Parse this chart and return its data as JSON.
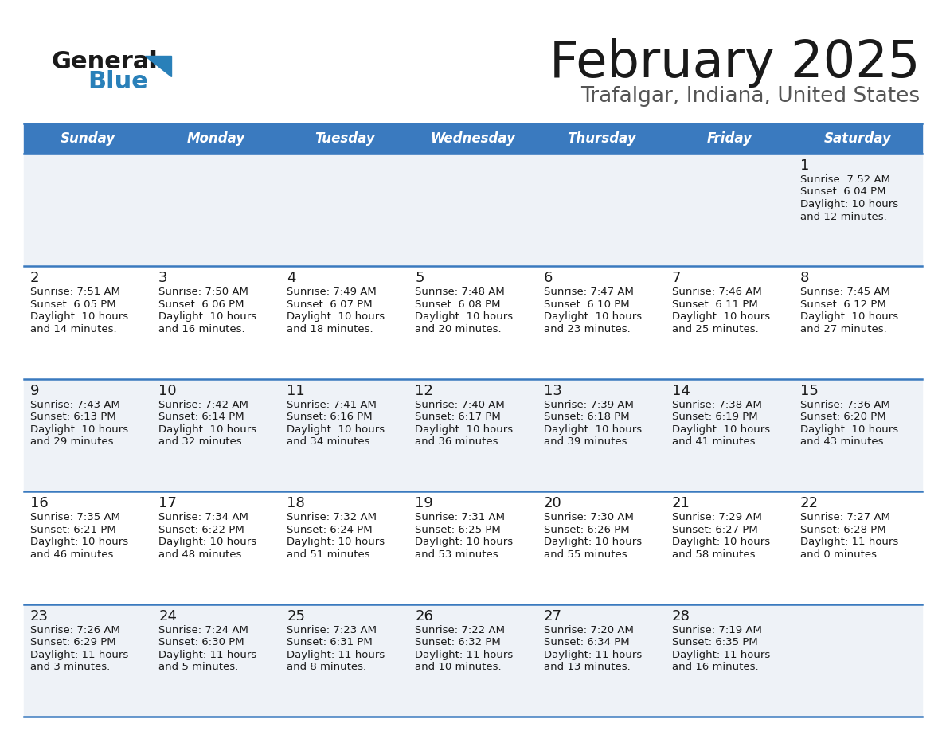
{
  "title": "February 2025",
  "subtitle": "Trafalgar, Indiana, United States",
  "header_color": "#3a7abf",
  "header_text_color": "#ffffff",
  "cell_bg_odd": "#eef2f7",
  "cell_bg_even": "#ffffff",
  "border_color": "#3a7abf",
  "text_color": "#1a1a1a",
  "days_of_week": [
    "Sunday",
    "Monday",
    "Tuesday",
    "Wednesday",
    "Thursday",
    "Friday",
    "Saturday"
  ],
  "calendar_data": [
    [
      {
        "day": null,
        "sunrise": null,
        "sunset": null,
        "daylight_line1": null,
        "daylight_line2": null
      },
      {
        "day": null,
        "sunrise": null,
        "sunset": null,
        "daylight_line1": null,
        "daylight_line2": null
      },
      {
        "day": null,
        "sunrise": null,
        "sunset": null,
        "daylight_line1": null,
        "daylight_line2": null
      },
      {
        "day": null,
        "sunrise": null,
        "sunset": null,
        "daylight_line1": null,
        "daylight_line2": null
      },
      {
        "day": null,
        "sunrise": null,
        "sunset": null,
        "daylight_line1": null,
        "daylight_line2": null
      },
      {
        "day": null,
        "sunrise": null,
        "sunset": null,
        "daylight_line1": null,
        "daylight_line2": null
      },
      {
        "day": "1",
        "sunrise": "Sunrise: 7:52 AM",
        "sunset": "Sunset: 6:04 PM",
        "daylight_line1": "Daylight: 10 hours",
        "daylight_line2": "and 12 minutes."
      }
    ],
    [
      {
        "day": "2",
        "sunrise": "Sunrise: 7:51 AM",
        "sunset": "Sunset: 6:05 PM",
        "daylight_line1": "Daylight: 10 hours",
        "daylight_line2": "and 14 minutes."
      },
      {
        "day": "3",
        "sunrise": "Sunrise: 7:50 AM",
        "sunset": "Sunset: 6:06 PM",
        "daylight_line1": "Daylight: 10 hours",
        "daylight_line2": "and 16 minutes."
      },
      {
        "day": "4",
        "sunrise": "Sunrise: 7:49 AM",
        "sunset": "Sunset: 6:07 PM",
        "daylight_line1": "Daylight: 10 hours",
        "daylight_line2": "and 18 minutes."
      },
      {
        "day": "5",
        "sunrise": "Sunrise: 7:48 AM",
        "sunset": "Sunset: 6:08 PM",
        "daylight_line1": "Daylight: 10 hours",
        "daylight_line2": "and 20 minutes."
      },
      {
        "day": "6",
        "sunrise": "Sunrise: 7:47 AM",
        "sunset": "Sunset: 6:10 PM",
        "daylight_line1": "Daylight: 10 hours",
        "daylight_line2": "and 23 minutes."
      },
      {
        "day": "7",
        "sunrise": "Sunrise: 7:46 AM",
        "sunset": "Sunset: 6:11 PM",
        "daylight_line1": "Daylight: 10 hours",
        "daylight_line2": "and 25 minutes."
      },
      {
        "day": "8",
        "sunrise": "Sunrise: 7:45 AM",
        "sunset": "Sunset: 6:12 PM",
        "daylight_line1": "Daylight: 10 hours",
        "daylight_line2": "and 27 minutes."
      }
    ],
    [
      {
        "day": "9",
        "sunrise": "Sunrise: 7:43 AM",
        "sunset": "Sunset: 6:13 PM",
        "daylight_line1": "Daylight: 10 hours",
        "daylight_line2": "and 29 minutes."
      },
      {
        "day": "10",
        "sunrise": "Sunrise: 7:42 AM",
        "sunset": "Sunset: 6:14 PM",
        "daylight_line1": "Daylight: 10 hours",
        "daylight_line2": "and 32 minutes."
      },
      {
        "day": "11",
        "sunrise": "Sunrise: 7:41 AM",
        "sunset": "Sunset: 6:16 PM",
        "daylight_line1": "Daylight: 10 hours",
        "daylight_line2": "and 34 minutes."
      },
      {
        "day": "12",
        "sunrise": "Sunrise: 7:40 AM",
        "sunset": "Sunset: 6:17 PM",
        "daylight_line1": "Daylight: 10 hours",
        "daylight_line2": "and 36 minutes."
      },
      {
        "day": "13",
        "sunrise": "Sunrise: 7:39 AM",
        "sunset": "Sunset: 6:18 PM",
        "daylight_line1": "Daylight: 10 hours",
        "daylight_line2": "and 39 minutes."
      },
      {
        "day": "14",
        "sunrise": "Sunrise: 7:38 AM",
        "sunset": "Sunset: 6:19 PM",
        "daylight_line1": "Daylight: 10 hours",
        "daylight_line2": "and 41 minutes."
      },
      {
        "day": "15",
        "sunrise": "Sunrise: 7:36 AM",
        "sunset": "Sunset: 6:20 PM",
        "daylight_line1": "Daylight: 10 hours",
        "daylight_line2": "and 43 minutes."
      }
    ],
    [
      {
        "day": "16",
        "sunrise": "Sunrise: 7:35 AM",
        "sunset": "Sunset: 6:21 PM",
        "daylight_line1": "Daylight: 10 hours",
        "daylight_line2": "and 46 minutes."
      },
      {
        "day": "17",
        "sunrise": "Sunrise: 7:34 AM",
        "sunset": "Sunset: 6:22 PM",
        "daylight_line1": "Daylight: 10 hours",
        "daylight_line2": "and 48 minutes."
      },
      {
        "day": "18",
        "sunrise": "Sunrise: 7:32 AM",
        "sunset": "Sunset: 6:24 PM",
        "daylight_line1": "Daylight: 10 hours",
        "daylight_line2": "and 51 minutes."
      },
      {
        "day": "19",
        "sunrise": "Sunrise: 7:31 AM",
        "sunset": "Sunset: 6:25 PM",
        "daylight_line1": "Daylight: 10 hours",
        "daylight_line2": "and 53 minutes."
      },
      {
        "day": "20",
        "sunrise": "Sunrise: 7:30 AM",
        "sunset": "Sunset: 6:26 PM",
        "daylight_line1": "Daylight: 10 hours",
        "daylight_line2": "and 55 minutes."
      },
      {
        "day": "21",
        "sunrise": "Sunrise: 7:29 AM",
        "sunset": "Sunset: 6:27 PM",
        "daylight_line1": "Daylight: 10 hours",
        "daylight_line2": "and 58 minutes."
      },
      {
        "day": "22",
        "sunrise": "Sunrise: 7:27 AM",
        "sunset": "Sunset: 6:28 PM",
        "daylight_line1": "Daylight: 11 hours",
        "daylight_line2": "and 0 minutes."
      }
    ],
    [
      {
        "day": "23",
        "sunrise": "Sunrise: 7:26 AM",
        "sunset": "Sunset: 6:29 PM",
        "daylight_line1": "Daylight: 11 hours",
        "daylight_line2": "and 3 minutes."
      },
      {
        "day": "24",
        "sunrise": "Sunrise: 7:24 AM",
        "sunset": "Sunset: 6:30 PM",
        "daylight_line1": "Daylight: 11 hours",
        "daylight_line2": "and 5 minutes."
      },
      {
        "day": "25",
        "sunrise": "Sunrise: 7:23 AM",
        "sunset": "Sunset: 6:31 PM",
        "daylight_line1": "Daylight: 11 hours",
        "daylight_line2": "and 8 minutes."
      },
      {
        "day": "26",
        "sunrise": "Sunrise: 7:22 AM",
        "sunset": "Sunset: 6:32 PM",
        "daylight_line1": "Daylight: 11 hours",
        "daylight_line2": "and 10 minutes."
      },
      {
        "day": "27",
        "sunrise": "Sunrise: 7:20 AM",
        "sunset": "Sunset: 6:34 PM",
        "daylight_line1": "Daylight: 11 hours",
        "daylight_line2": "and 13 minutes."
      },
      {
        "day": "28",
        "sunrise": "Sunrise: 7:19 AM",
        "sunset": "Sunset: 6:35 PM",
        "daylight_line1": "Daylight: 11 hours",
        "daylight_line2": "and 16 minutes."
      },
      {
        "day": null,
        "sunrise": null,
        "sunset": null,
        "daylight_line1": null,
        "daylight_line2": null
      }
    ]
  ]
}
